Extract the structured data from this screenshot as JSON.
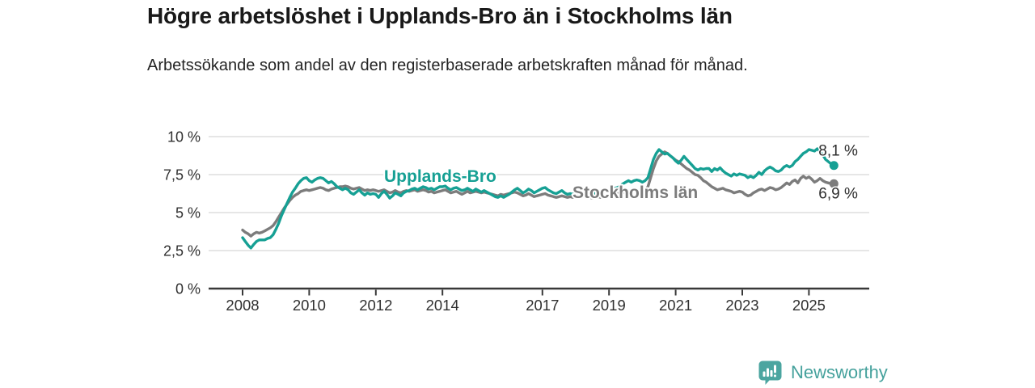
{
  "header": {
    "title": "Högre arbetslöshet i Upplands-Bro än i Stockholms län",
    "subtitle": "Arbetssökande som andel av den registerbaserade arbetskraften månad för månad."
  },
  "chart_data": {
    "type": "line",
    "frequency": "monthly",
    "start": "2008-01",
    "end": "2025-10",
    "unit": "%",
    "grid": "horizontal",
    "ylim": [
      0,
      10.6
    ],
    "colors": {
      "grid": "#d8d8d8",
      "axis": "#383838",
      "tick_label": "#303030",
      "end_label": "#2d2d2d"
    },
    "y_axis": {
      "ticks": [
        {
          "value": 0,
          "label": "0 %"
        },
        {
          "value": 2.5,
          "label": "2,5 %"
        },
        {
          "value": 5,
          "label": "5 %"
        },
        {
          "value": 7.5,
          "label": "7,5 %"
        },
        {
          "value": 10,
          "label": "10 %"
        }
      ]
    },
    "x_axis": {
      "tick_years": [
        2008,
        2010,
        2012,
        2014,
        2017,
        2019,
        2021,
        2023,
        2025
      ]
    },
    "series": [
      {
        "name": "Upplands-Bro",
        "color": "#16a094",
        "end_value_label": "8,1 %",
        "last_value": 8.1,
        "values": [
          3.35,
          3.1,
          2.85,
          2.67,
          2.9,
          3.1,
          3.2,
          3.2,
          3.2,
          3.3,
          3.35,
          3.55,
          3.9,
          4.3,
          4.8,
          5.2,
          5.6,
          6.0,
          6.35,
          6.6,
          6.9,
          7.1,
          7.25,
          7.3,
          7.1,
          7.0,
          7.15,
          7.25,
          7.3,
          7.25,
          7.1,
          6.95,
          7.05,
          6.9,
          6.7,
          6.6,
          6.5,
          6.6,
          6.5,
          6.3,
          6.2,
          6.35,
          6.5,
          6.3,
          6.15,
          6.3,
          6.2,
          6.25,
          6.2,
          6.0,
          6.25,
          6.4,
          6.2,
          5.95,
          6.1,
          6.3,
          6.2,
          6.1,
          6.3,
          6.4,
          6.45,
          6.55,
          6.6,
          6.5,
          6.6,
          6.7,
          6.65,
          6.55,
          6.6,
          6.5,
          6.6,
          6.7,
          6.7,
          6.75,
          6.6,
          6.5,
          6.6,
          6.65,
          6.55,
          6.45,
          6.5,
          6.6,
          6.5,
          6.4,
          6.55,
          6.45,
          6.35,
          6.45,
          6.35,
          6.25,
          6.15,
          6.05,
          6.0,
          6.1,
          6.0,
          6.1,
          6.2,
          6.35,
          6.5,
          6.6,
          6.45,
          6.3,
          6.4,
          6.55,
          6.45,
          6.3,
          6.4,
          6.5,
          6.6,
          6.65,
          6.5,
          6.4,
          6.3,
          6.25,
          6.35,
          6.45,
          6.3,
          6.2,
          6.25,
          6.2,
          6.25,
          6.15,
          6.2,
          6.3,
          6.25,
          6.15,
          6.2,
          6.3,
          6.35,
          6.4,
          6.45,
          6.5,
          6.45,
          6.55,
          6.6,
          6.65,
          6.75,
          6.9,
          7.0,
          7.1,
          7.0,
          7.1,
          7.15,
          7.1,
          7.0,
          7.1,
          7.3,
          7.9,
          8.5,
          8.9,
          9.15,
          9.0,
          8.85,
          8.9,
          8.75,
          8.6,
          8.4,
          8.25,
          8.45,
          8.7,
          8.5,
          8.3,
          8.1,
          7.9,
          7.8,
          7.9,
          7.85,
          7.9,
          7.9,
          7.7,
          7.9,
          7.8,
          7.95,
          7.75,
          7.6,
          7.5,
          7.4,
          7.55,
          7.45,
          7.55,
          7.5,
          7.45,
          7.3,
          7.4,
          7.3,
          7.45,
          7.65,
          7.5,
          7.75,
          7.9,
          8.0,
          7.9,
          7.75,
          7.7,
          7.8,
          8.0,
          8.1,
          8.0,
          8.1,
          8.35,
          8.5,
          8.7,
          8.9,
          9.0,
          9.15,
          9.1,
          9.05,
          9.2,
          9.0,
          8.8,
          8.5,
          8.35,
          8.2,
          8.1
        ]
      },
      {
        "name": "Stockholms län",
        "color": "#7c7c7c",
        "end_value_label": "6,9 %",
        "last_value": 6.9,
        "values": [
          3.85,
          3.7,
          3.6,
          3.45,
          3.6,
          3.7,
          3.65,
          3.7,
          3.8,
          3.9,
          4.0,
          4.15,
          4.4,
          4.7,
          5.0,
          5.3,
          5.55,
          5.8,
          6.0,
          6.15,
          6.25,
          6.4,
          6.45,
          6.5,
          6.45,
          6.5,
          6.55,
          6.6,
          6.65,
          6.6,
          6.5,
          6.45,
          6.55,
          6.6,
          6.65,
          6.7,
          6.7,
          6.75,
          6.7,
          6.6,
          6.55,
          6.6,
          6.65,
          6.55,
          6.45,
          6.5,
          6.45,
          6.5,
          6.45,
          6.4,
          6.45,
          6.5,
          6.4,
          6.3,
          6.35,
          6.45,
          6.35,
          6.3,
          6.4,
          6.45,
          6.4,
          6.45,
          6.5,
          6.4,
          6.45,
          6.5,
          6.45,
          6.35,
          6.4,
          6.3,
          6.35,
          6.4,
          6.45,
          6.5,
          6.4,
          6.3,
          6.35,
          6.4,
          6.3,
          6.2,
          6.3,
          6.4,
          6.3,
          6.35,
          6.4,
          6.35,
          6.3,
          6.35,
          6.3,
          6.25,
          6.2,
          6.15,
          6.1,
          6.2,
          6.15,
          6.2,
          6.25,
          6.3,
          6.35,
          6.3,
          6.2,
          6.1,
          6.15,
          6.25,
          6.15,
          6.05,
          6.1,
          6.15,
          6.2,
          6.25,
          6.15,
          6.1,
          6.05,
          6.0,
          6.05,
          6.1,
          6.05,
          6.0,
          6.05,
          6.0,
          6.05,
          6.0,
          6.05,
          6.1,
          6.05,
          6.0,
          5.95,
          6.0,
          6.05,
          6.0,
          6.05,
          6.1,
          6.1,
          6.15,
          6.2,
          6.25,
          6.3,
          6.35,
          6.3,
          6.35,
          6.4,
          6.45,
          6.5,
          6.45,
          6.4,
          6.45,
          6.7,
          7.3,
          7.9,
          8.4,
          8.7,
          8.85,
          9.0,
          8.9,
          8.75,
          8.6,
          8.45,
          8.35,
          8.2,
          8.05,
          7.9,
          7.8,
          7.65,
          7.5,
          7.45,
          7.3,
          7.1,
          7.0,
          6.85,
          6.7,
          6.6,
          6.5,
          6.55,
          6.6,
          6.5,
          6.45,
          6.4,
          6.3,
          6.35,
          6.4,
          6.35,
          6.2,
          6.1,
          6.15,
          6.3,
          6.4,
          6.5,
          6.55,
          6.45,
          6.55,
          6.65,
          6.6,
          6.5,
          6.55,
          6.65,
          6.8,
          6.95,
          6.85,
          7.05,
          7.15,
          6.95,
          7.25,
          7.4,
          7.25,
          7.35,
          7.2,
          7.0,
          7.1,
          7.25,
          7.1,
          7.0,
          6.95,
          6.9,
          6.9
        ]
      }
    ]
  },
  "footer": {
    "brand": "Newsworthy",
    "brand_color": "#45a19c",
    "logo_color": "#4ba5a0",
    "logo_glyph_color": "#ffffff"
  }
}
